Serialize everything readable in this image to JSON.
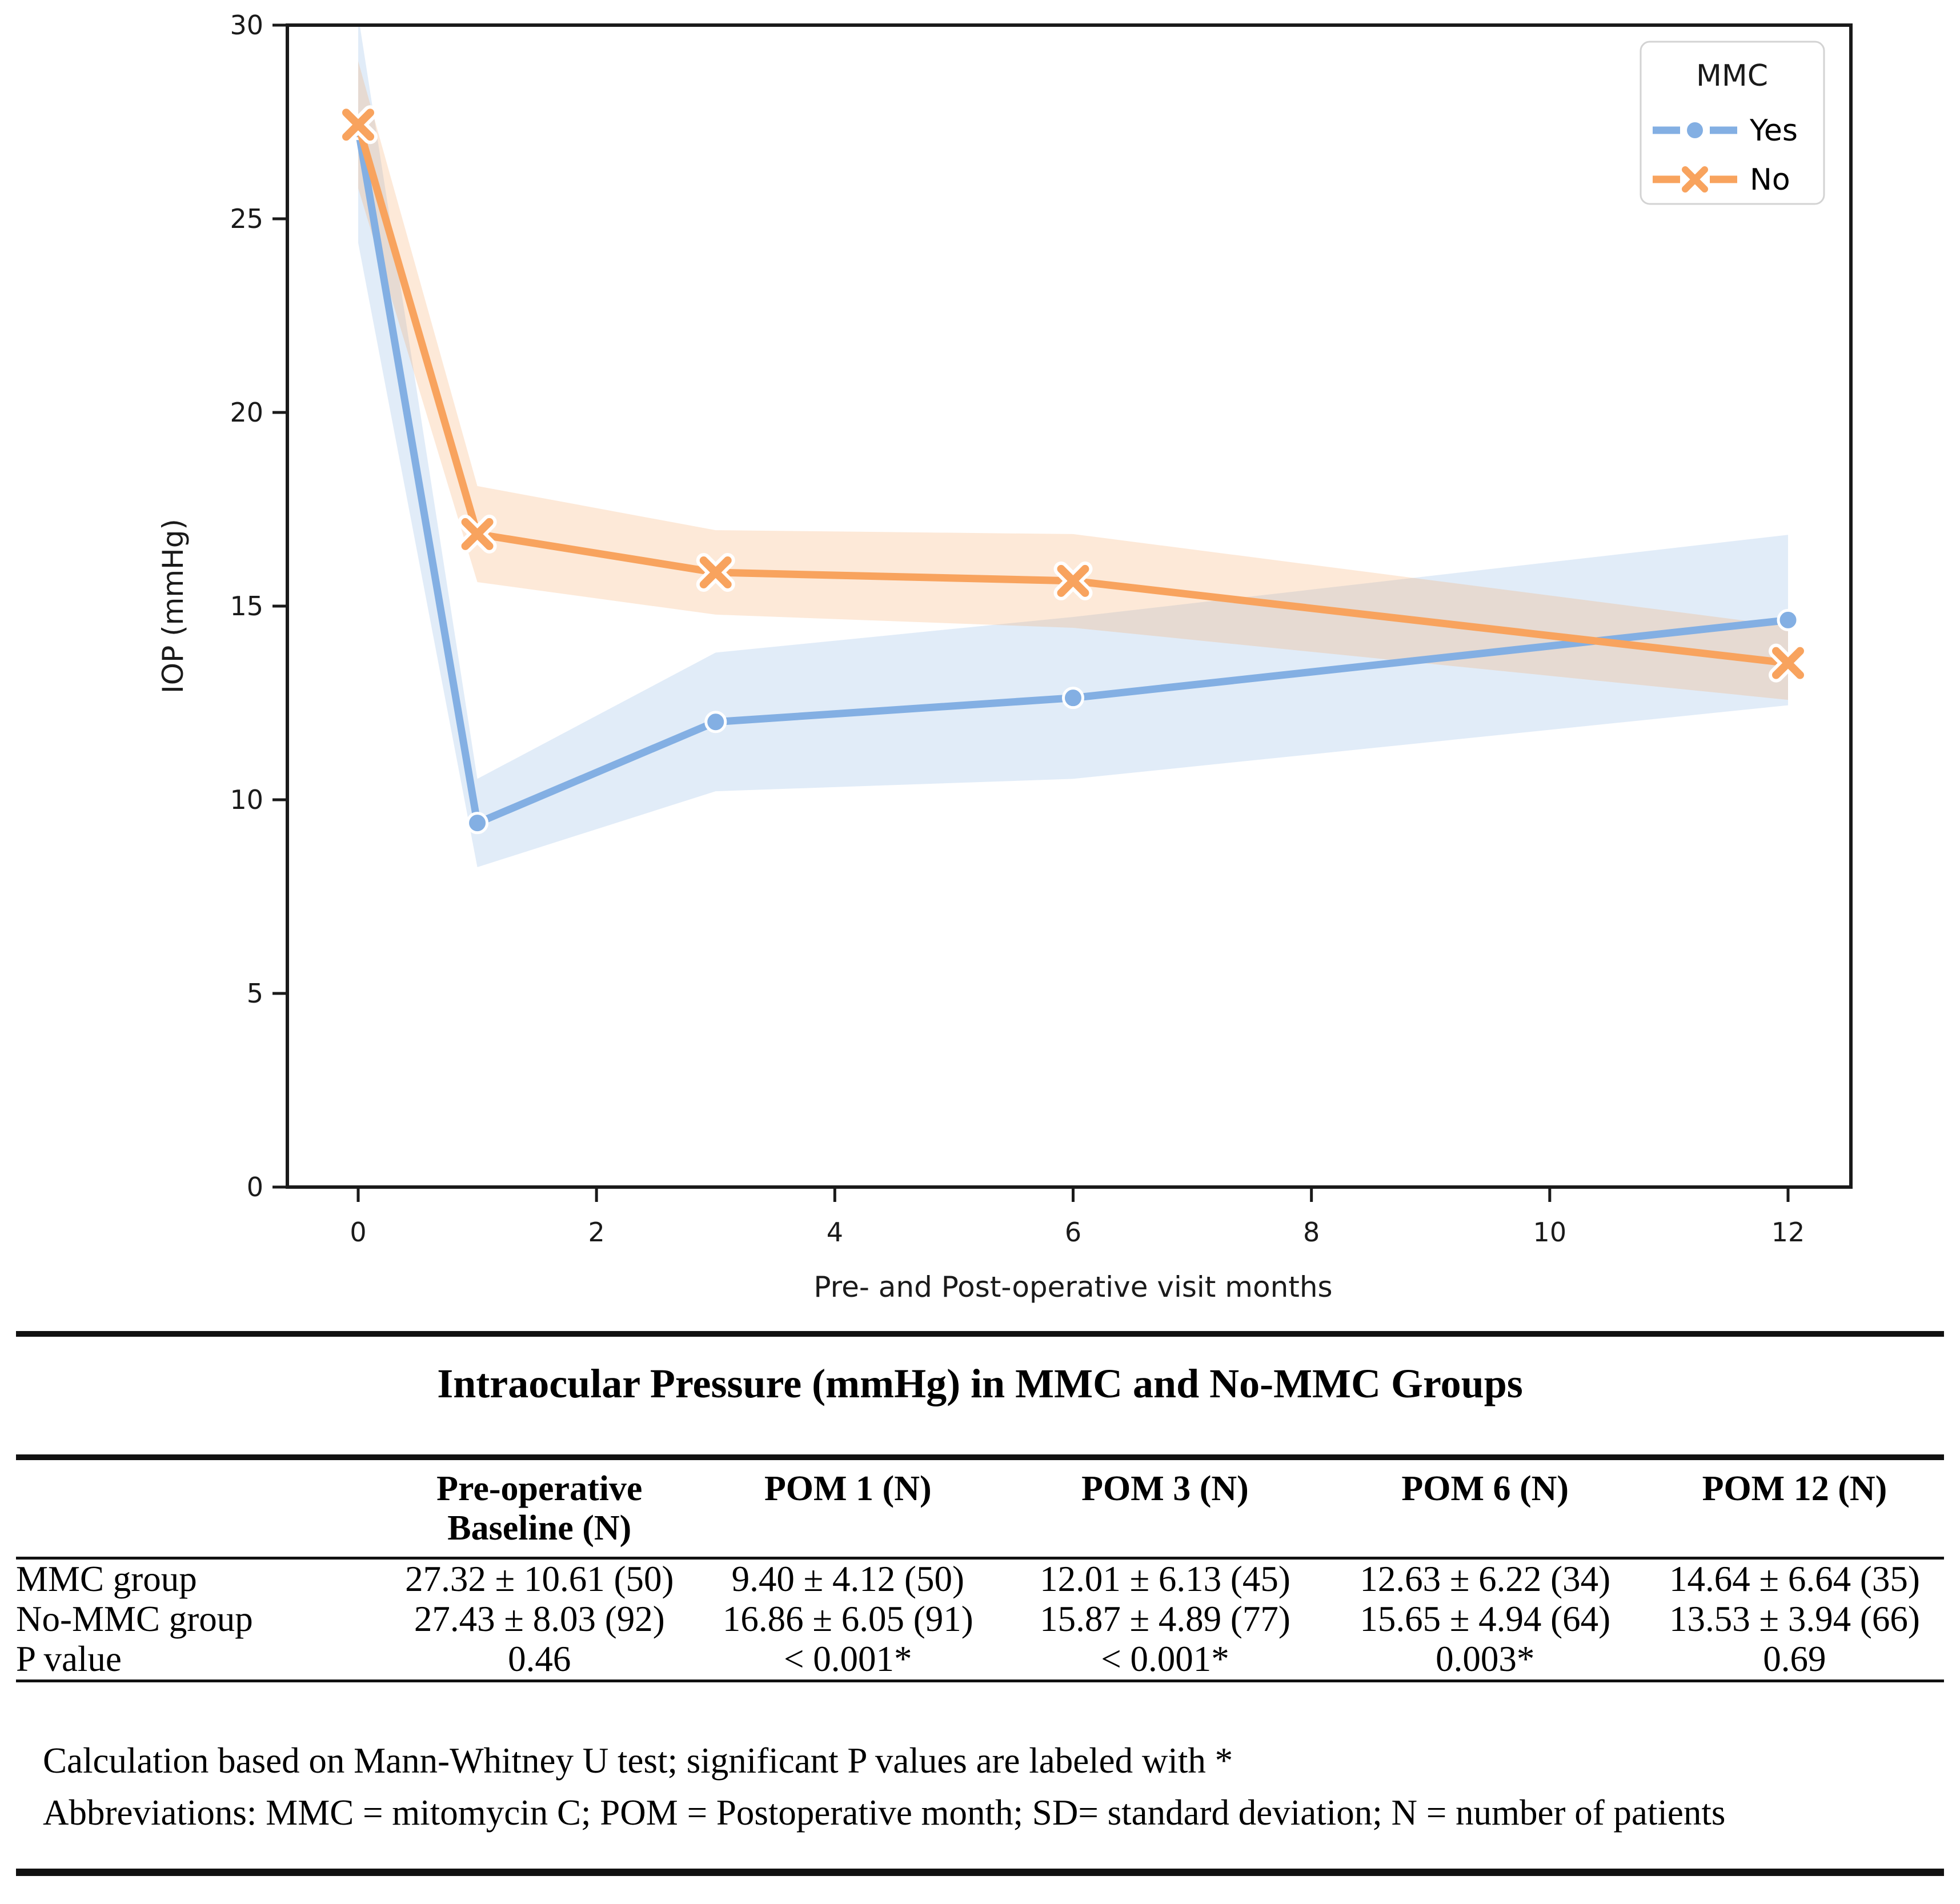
{
  "chart_data": {
    "type": "line",
    "title": "",
    "xlabel": "Pre- and Post-operative visit months",
    "ylabel": "IOP (mmHg)",
    "xlim": [
      -0.6,
      12.6
    ],
    "ylim": [
      0,
      30
    ],
    "xticks": [
      0,
      2,
      4,
      6,
      8,
      10,
      12
    ],
    "yticks": [
      0,
      5,
      10,
      15,
      20,
      25,
      30
    ],
    "grid": false,
    "legend_title": "MMC",
    "legend_position": "upper right",
    "x": [
      0,
      1,
      3,
      6,
      12
    ],
    "series": [
      {
        "name": "Yes",
        "color": "#83afe3",
        "marker": "circle",
        "values": [
          27.32,
          9.4,
          12.01,
          12.63,
          14.64
        ],
        "ci_lower": [
          24.38,
          8.26,
          10.22,
          10.54,
          12.44
        ],
        "ci_upper": [
          30.26,
          10.54,
          13.8,
          14.72,
          16.84
        ]
      },
      {
        "name": "No",
        "color": "#f8a35e",
        "marker": "x",
        "values": [
          27.43,
          16.86,
          15.87,
          15.65,
          13.53
        ],
        "ci_lower": [
          25.79,
          15.62,
          14.78,
          14.44,
          12.58
        ],
        "ci_upper": [
          29.07,
          18.1,
          16.96,
          16.86,
          14.48
        ]
      }
    ]
  },
  "table": {
    "title": "Intraocular Pressure (mmHg) in MMC and No-MMC Groups",
    "columns": [
      "",
      "Pre-operative\nBaseline (N)",
      "POM 1 (N)",
      "POM 3 (N)",
      "POM 6 (N)",
      "POM 12 (N)"
    ],
    "rows": [
      {
        "label": "MMC group",
        "values": [
          "27.32 ± 10.61 (50)",
          "9.40 ± 4.12 (50)",
          "12.01 ± 6.13 (45)",
          "12.63 ± 6.22 (34)",
          "14.64 ± 6.64 (35)"
        ]
      },
      {
        "label": "No-MMC group",
        "values": [
          "27.43 ± 8.03 (92)",
          "16.86 ± 6.05 (91)",
          "15.87 ± 4.89 (77)",
          "15.65 ± 4.94 (64)",
          "13.53 ± 3.94 (66)"
        ]
      },
      {
        "label": "P value",
        "values": [
          "0.46",
          "< 0.001*",
          "< 0.001*",
          "0.003*",
          "0.69"
        ]
      }
    ],
    "footnotes": [
      "Calculation based on Mann-Whitney U test; significant P values are labeled with *",
      "Abbreviations: MMC = mitomycin C; POM = Postoperative month; SD= standard deviation; N = number of patients"
    ]
  },
  "colors": {
    "axis": "#1a1a1a",
    "legend_border": "#d3d3d3",
    "band_opacity": "0.24"
  }
}
